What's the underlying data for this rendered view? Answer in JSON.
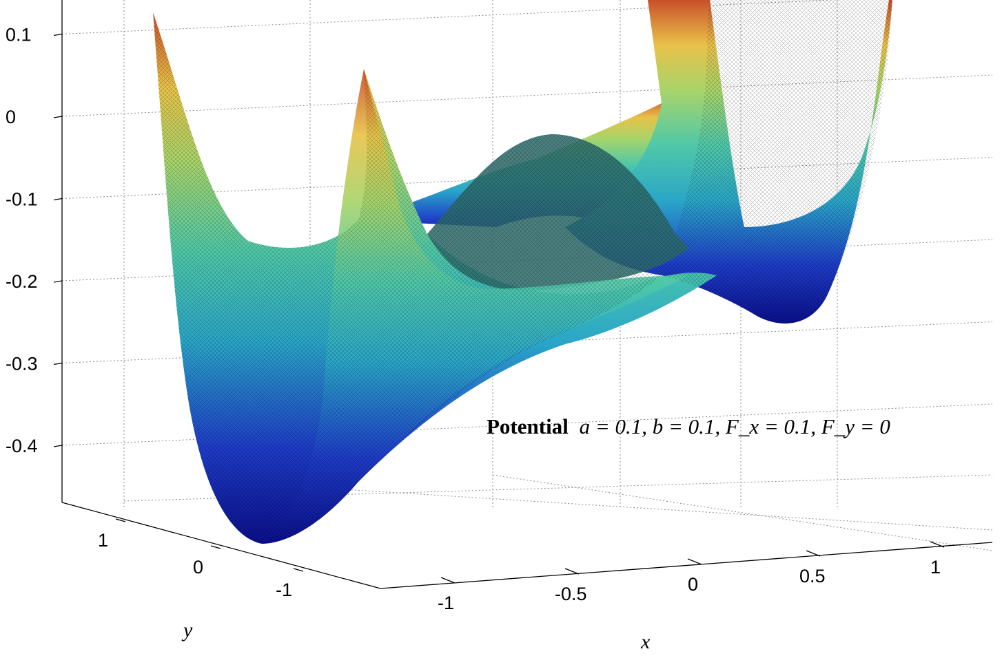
{
  "chart_data": {
    "type": "surface",
    "title": "",
    "xlabel": "x",
    "ylabel": "y",
    "zlabel": "",
    "annotation": {
      "bold": "Potential",
      "math": "a = 0.1, b = 0.1, F_x = 0.1, F_y = 0"
    },
    "xlim": [
      -1.25,
      1.25
    ],
    "ylim": [
      -1.25,
      1.25
    ],
    "zlim": [
      -0.47,
      0.15
    ],
    "x_ticks": [
      "-1",
      "-0.5",
      "0",
      "0.5",
      "1"
    ],
    "y_ticks": [
      "-1",
      "0",
      "1"
    ],
    "z_ticks": [
      "-0.4",
      "-0.3",
      "-0.2",
      "-0.1",
      "0",
      "0.1"
    ],
    "z_tick_values": [
      -0.4,
      -0.3,
      -0.2,
      -0.1,
      0,
      0.1
    ],
    "colormap": "jet",
    "grid": true,
    "surface_features": {
      "minimum_xy": [
        -1.0,
        0.05
      ],
      "minimum_z": -0.47,
      "central_hump_z": -0.02,
      "corner_spikes_z": [
        0.13,
        0.05,
        0.2,
        0.2
      ]
    }
  }
}
